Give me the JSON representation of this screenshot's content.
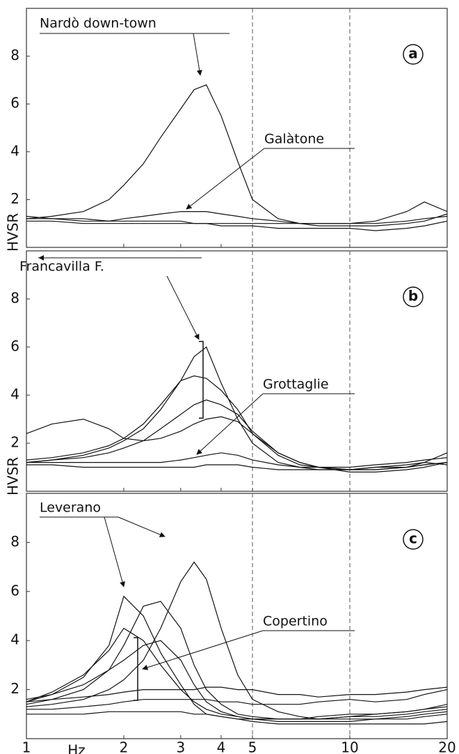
{
  "chart_data": [
    {
      "type": "line",
      "panel_label": "a",
      "annotations": [
        "Nardò down-town",
        "Galàtone"
      ],
      "ylabel": "HVSR",
      "log_x": true,
      "xlim": [
        1,
        20
      ],
      "xticks": [
        1,
        2,
        3,
        4,
        5,
        10,
        20
      ],
      "ylim": [
        0,
        10
      ],
      "yticks": [
        2,
        4,
        6,
        8
      ],
      "vlines": [
        5,
        10
      ],
      "x": [
        1,
        1.2,
        1.5,
        1.8,
        2,
        2.3,
        2.6,
        3,
        3.3,
        3.6,
        4,
        4.5,
        5,
        6,
        7,
        8,
        10,
        12,
        15,
        17,
        20
      ],
      "series": [
        {
          "color": "#111",
          "values": [
            1.2,
            1.3,
            1.5,
            2.0,
            2.6,
            3.5,
            4.6,
            5.8,
            6.6,
            6.8,
            5.5,
            3.6,
            2.0,
            1.2,
            1.0,
            1.0,
            1.0,
            1.1,
            1.5,
            1.9,
            1.5
          ]
        },
        {
          "color": "#111",
          "values": [
            1.2,
            1.2,
            1.1,
            1.1,
            1.2,
            1.3,
            1.4,
            1.5,
            1.5,
            1.5,
            1.4,
            1.3,
            1.2,
            1.1,
            1.0,
            1.0,
            1.0,
            1.0,
            1.1,
            1.2,
            1.3
          ]
        },
        {
          "color": "#111",
          "values": [
            1.1,
            1.1,
            1.0,
            1.0,
            1.0,
            1.0,
            1.0,
            1.0,
            1.0,
            1.0,
            0.9,
            0.9,
            0.9,
            0.8,
            0.8,
            0.8,
            0.8,
            0.7,
            0.8,
            0.9,
            1.1
          ]
        },
        {
          "color": "#111",
          "values": [
            1.3,
            1.2,
            1.2,
            1.1,
            1.1,
            1.1,
            1.1,
            1.1,
            1.0,
            1.0,
            1.0,
            1.0,
            1.0,
            1.0,
            1.0,
            0.9,
            0.9,
            0.9,
            1.0,
            1.1,
            1.4
          ]
        }
      ]
    },
    {
      "type": "line",
      "panel_label": "b",
      "annotations": [
        "Francavilla F.",
        "Grottaglie"
      ],
      "ylabel": "HVSR",
      "log_x": true,
      "xlim": [
        1,
        20
      ],
      "xticks": [
        1,
        2,
        3,
        4,
        5,
        10,
        20
      ],
      "ylim": [
        0,
        10
      ],
      "yticks": [
        2,
        4,
        6,
        8
      ],
      "vlines": [
        5,
        10
      ],
      "x": [
        1,
        1.2,
        1.5,
        1.8,
        2,
        2.3,
        2.6,
        3,
        3.3,
        3.6,
        4,
        4.5,
        5,
        6,
        7,
        8,
        10,
        12,
        15,
        17,
        20
      ],
      "series": [
        {
          "color": "#111",
          "values": [
            1.2,
            1.3,
            1.5,
            1.8,
            2.1,
            2.6,
            3.4,
            4.6,
            5.6,
            6.0,
            4.5,
            3.0,
            2.0,
            1.2,
            1.0,
            0.9,
            0.9,
            0.9,
            1.0,
            1.2,
            1.6
          ]
        },
        {
          "color": "#111",
          "values": [
            1.3,
            1.4,
            1.6,
            1.9,
            2.2,
            2.8,
            3.6,
            4.6,
            4.8,
            4.7,
            4.2,
            3.4,
            2.4,
            1.5,
            1.1,
            1.0,
            0.9,
            0.9,
            1.0,
            1.1,
            1.2
          ]
        },
        {
          "color": "#111",
          "values": [
            1.2,
            1.3,
            1.4,
            1.6,
            1.8,
            2.1,
            2.6,
            3.2,
            3.6,
            3.8,
            3.6,
            3.2,
            2.5,
            1.6,
            1.2,
            1.0,
            0.8,
            0.8,
            0.9,
            1.0,
            1.2
          ]
        },
        {
          "color": "#111",
          "values": [
            2.4,
            2.8,
            3.0,
            2.6,
            2.2,
            2.1,
            2.2,
            2.5,
            2.8,
            3.0,
            3.1,
            2.9,
            2.4,
            1.6,
            1.2,
            1.0,
            0.9,
            1.0,
            1.1,
            1.2,
            1.1
          ]
        },
        {
          "color": "#111",
          "values": [
            1.2,
            1.2,
            1.2,
            1.2,
            1.2,
            1.2,
            1.2,
            1.3,
            1.4,
            1.5,
            1.6,
            1.5,
            1.3,
            1.1,
            1.0,
            1.0,
            1.0,
            1.1,
            1.2,
            1.3,
            1.4
          ]
        },
        {
          "color": "#111",
          "values": [
            1.1,
            1.1,
            1.0,
            1.0,
            1.0,
            1.0,
            1.0,
            1.0,
            1.0,
            1.1,
            1.1,
            1.1,
            1.0,
            0.9,
            0.9,
            0.9,
            0.9,
            1.0,
            1.0,
            1.1,
            1.2
          ]
        }
      ]
    },
    {
      "type": "line",
      "panel_label": "c",
      "annotations": [
        "Leverano",
        "Copertino"
      ],
      "xlabel": "Hz",
      "log_x": true,
      "xlim": [
        1,
        20
      ],
      "xticks": [
        1,
        2,
        3,
        4,
        5,
        10,
        20
      ],
      "ylim": [
        0,
        10
      ],
      "yticks": [
        2,
        4,
        6,
        8
      ],
      "vlines": [
        5,
        10
      ],
      "x": [
        1,
        1.2,
        1.5,
        1.8,
        2,
        2.3,
        2.6,
        3,
        3.3,
        3.6,
        4,
        4.5,
        5,
        6,
        7,
        8,
        10,
        12,
        15,
        17,
        20
      ],
      "series": [
        {
          "color": "#111",
          "values": [
            1.5,
            1.8,
            2.5,
            3.8,
            5.8,
            5.0,
            3.5,
            2.2,
            1.4,
            1.0,
            0.9,
            0.8,
            0.8,
            0.8,
            0.8,
            0.8,
            0.9,
            1.0,
            1.1,
            1.2,
            1.3
          ]
        },
        {
          "color": "#111",
          "values": [
            1.4,
            1.6,
            2.0,
            2.8,
            3.8,
            5.4,
            5.6,
            4.5,
            3.0,
            2.0,
            1.4,
            1.0,
            0.9,
            0.8,
            0.8,
            0.8,
            0.9,
            0.9,
            1.0,
            1.1,
            1.2
          ]
        },
        {
          "color": "#111",
          "values": [
            1.3,
            1.4,
            1.6,
            2.0,
            2.4,
            3.2,
            4.5,
            6.4,
            7.2,
            6.5,
            4.5,
            2.6,
            1.6,
            1.1,
            0.9,
            0.8,
            0.8,
            0.8,
            0.8,
            0.9,
            1.0
          ]
        },
        {
          "color": "#111",
          "values": [
            1.5,
            1.9,
            2.6,
            3.6,
            4.5,
            4.0,
            3.0,
            2.0,
            1.5,
            1.2,
            1.0,
            0.9,
            0.8,
            0.8,
            0.8,
            0.9,
            1.0,
            1.0,
            1.1,
            1.2,
            1.4
          ]
        },
        {
          "color": "#111",
          "values": [
            1.6,
            1.8,
            2.2,
            2.8,
            3.2,
            3.8,
            4.0,
            3.2,
            2.2,
            1.5,
            1.1,
            0.9,
            0.8,
            0.7,
            0.7,
            0.7,
            0.7,
            0.8,
            0.9,
            1.0,
            1.1
          ]
        },
        {
          "color": "#111",
          "values": [
            1.5,
            1.6,
            1.7,
            1.8,
            1.9,
            2.0,
            2.0,
            2.0,
            2.0,
            2.1,
            2.1,
            2.0,
            2.0,
            1.8,
            1.8,
            1.7,
            1.8,
            1.8,
            1.9,
            2.0,
            2.1
          ]
        },
        {
          "color": "#111",
          "values": [
            1.2,
            1.2,
            1.3,
            1.4,
            1.5,
            1.6,
            1.6,
            1.6,
            1.6,
            1.6,
            1.5,
            1.5,
            1.4,
            1.4,
            1.4,
            1.5,
            1.6,
            1.5,
            1.6,
            1.8,
            2.0
          ]
        },
        {
          "color": "#111",
          "values": [
            1.0,
            1.0,
            1.0,
            1.1,
            1.1,
            1.1,
            1.1,
            1.1,
            1.0,
            1.0,
            0.9,
            0.8,
            0.7,
            0.6,
            0.6,
            0.6,
            0.6,
            0.6,
            0.6,
            0.6,
            0.7
          ]
        }
      ]
    }
  ]
}
